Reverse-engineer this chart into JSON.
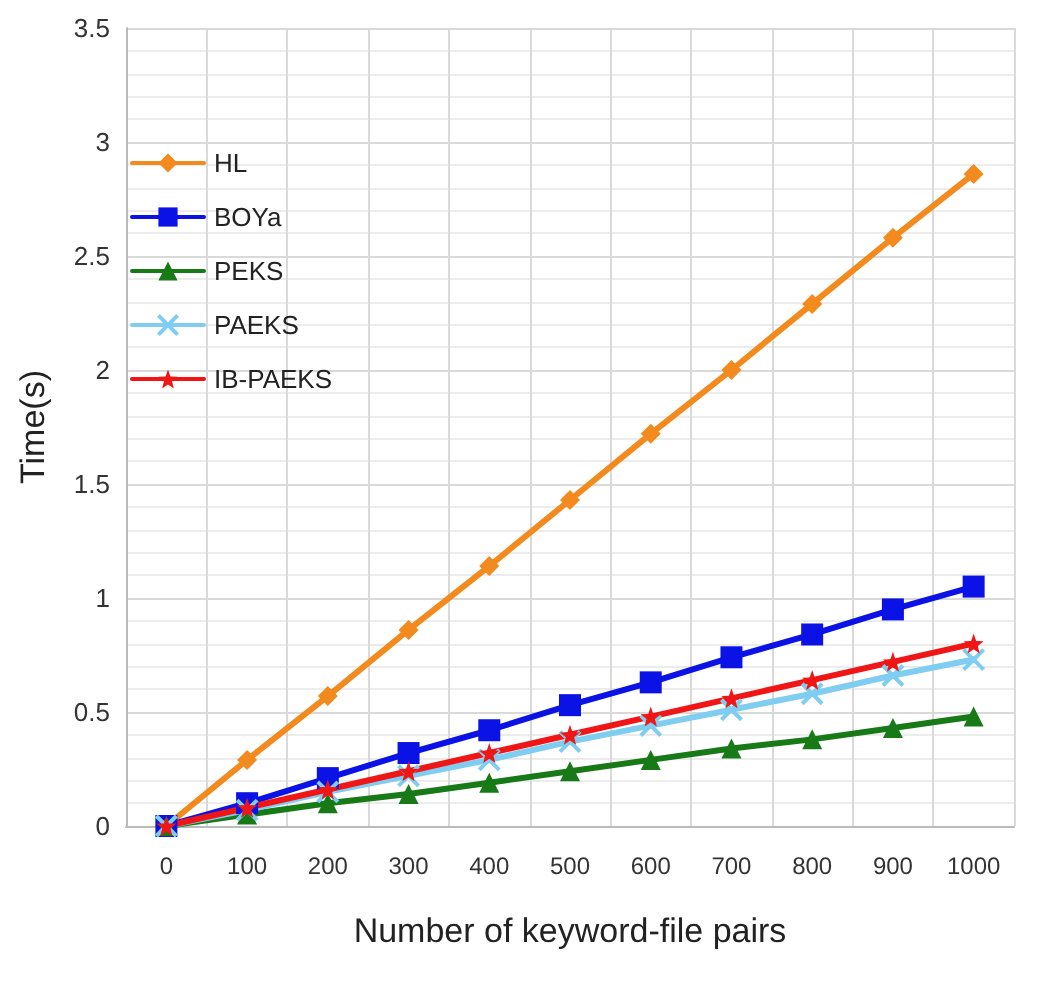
{
  "chart_data": {
    "type": "line",
    "xlabel": "Number of keyword-file pairs",
    "ylabel": "Time(s)",
    "categories": [
      "0",
      "100",
      "200",
      "300",
      "400",
      "500",
      "600",
      "700",
      "800",
      "900",
      "1000"
    ],
    "ylim": [
      0,
      3.5
    ],
    "yticks": [
      0,
      0.5,
      1,
      1.5,
      2,
      2.5,
      3,
      3.5
    ],
    "grid": true,
    "legend": "top left",
    "line_style": "solid",
    "series": [
      {
        "name": "HL",
        "color": "#f28a1e",
        "marker": "diamond",
        "values": [
          0,
          0.29,
          0.57,
          0.86,
          1.14,
          1.43,
          1.72,
          2.0,
          2.29,
          2.58,
          2.86
        ]
      },
      {
        "name": "BOYa",
        "color": "#0a12e6",
        "marker": "square",
        "values": [
          0,
          0.1,
          0.21,
          0.32,
          0.42,
          0.53,
          0.63,
          0.74,
          0.84,
          0.95,
          1.05
        ]
      },
      {
        "name": "PEKS",
        "color": "#177a17",
        "marker": "triangle",
        "values": [
          0,
          0.05,
          0.1,
          0.14,
          0.19,
          0.24,
          0.29,
          0.34,
          0.38,
          0.43,
          0.48
        ]
      },
      {
        "name": "PAEKS",
        "color": "#7fcdf0",
        "marker": "cross",
        "values": [
          0,
          0.07,
          0.15,
          0.22,
          0.29,
          0.37,
          0.44,
          0.51,
          0.58,
          0.66,
          0.73
        ]
      },
      {
        "name": "IB-PAEKS",
        "color": "#f01616",
        "marker": "star",
        "values": [
          0,
          0.08,
          0.16,
          0.24,
          0.32,
          0.4,
          0.48,
          0.56,
          0.64,
          0.72,
          0.8
        ]
      }
    ]
  }
}
